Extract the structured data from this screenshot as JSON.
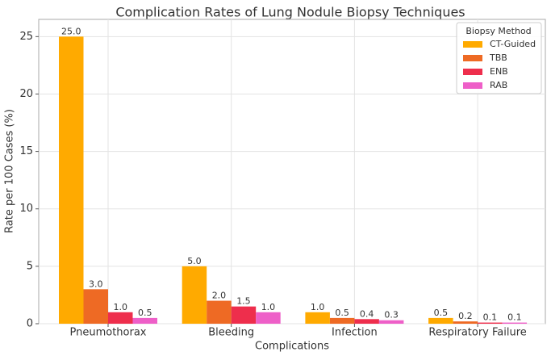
{
  "chart_data": {
    "type": "bar",
    "title": "Complication Rates of Lung Nodule Biopsy Techniques",
    "xlabel": "Complications",
    "ylabel": "Rate per 100 Cases (%)",
    "categories": [
      "Pneumothorax",
      "Bleeding",
      "Infection",
      "Respiratory Failure"
    ],
    "ylim": [
      0,
      26.5
    ],
    "yticks": [
      0,
      5,
      10,
      15,
      20,
      25
    ],
    "grid": true,
    "legend_title": "Biopsy Method",
    "legend_position": "top-right",
    "series": [
      {
        "name": "CT-Guided",
        "color": "#FFAA00",
        "values": [
          25.0,
          5.0,
          1.0,
          0.5
        ],
        "labels": [
          "25.0",
          "5.0",
          "1.0",
          "0.5"
        ]
      },
      {
        "name": "TBB",
        "color": "#EE6A24",
        "values": [
          3.0,
          2.0,
          0.5,
          0.2
        ],
        "labels": [
          "3.0",
          "2.0",
          "0.5",
          "0.2"
        ]
      },
      {
        "name": "ENB",
        "color": "#EE2E4C",
        "values": [
          1.0,
          1.5,
          0.4,
          0.1
        ],
        "labels": [
          "1.0",
          "1.5",
          "0.4",
          "0.1"
        ]
      },
      {
        "name": "RAB",
        "color": "#EE5FC8",
        "values": [
          0.5,
          1.0,
          0.3,
          0.1
        ],
        "labels": [
          "0.5",
          "1.0",
          "0.3",
          "0.1"
        ]
      }
    ]
  }
}
